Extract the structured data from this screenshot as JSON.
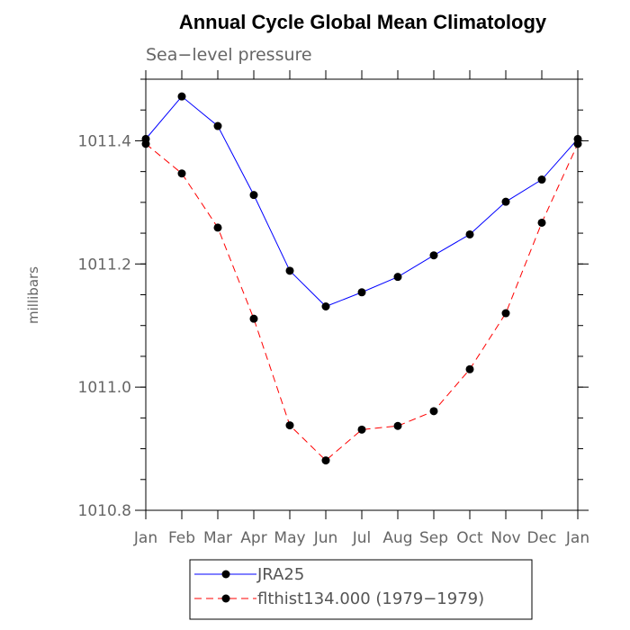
{
  "chart_data": {
    "type": "line",
    "title": "Annual Cycle Global Mean Climatology",
    "subtitle": "Sea−level pressure",
    "xlabel": "",
    "ylabel": "millibars",
    "categories": [
      "Jan",
      "Feb",
      "Mar",
      "Apr",
      "May",
      "Jun",
      "Jul",
      "Aug",
      "Sep",
      "Oct",
      "Nov",
      "Dec",
      "Jan"
    ],
    "ylim": [
      1010.8,
      1011.5
    ],
    "yticks": [
      1010.8,
      1011.0,
      1011.2,
      1011.4
    ],
    "ytick_labels": [
      "1010.8",
      "1011.0",
      "1011.2",
      "1011.4"
    ],
    "series": [
      {
        "name": "JRA25",
        "color": "#0000ff",
        "line_style": "solid",
        "marker": "filled-circle",
        "values": [
          1011.403,
          1011.472,
          1011.424,
          1011.312,
          1011.189,
          1011.131,
          1011.154,
          1011.179,
          1011.214,
          1011.248,
          1011.301,
          1011.337,
          1011.403
        ]
      },
      {
        "name": "flthist134.000 (1979−1979)",
        "color": "#ff0000",
        "line_style": "dashed",
        "marker": "filled-circle",
        "values": [
          1011.395,
          1011.347,
          1011.259,
          1011.111,
          1010.938,
          1010.881,
          1010.931,
          1010.937,
          1010.961,
          1011.029,
          1011.12,
          1011.267,
          1011.395
        ]
      }
    ],
    "grid": false,
    "legend_position": "bottom"
  }
}
